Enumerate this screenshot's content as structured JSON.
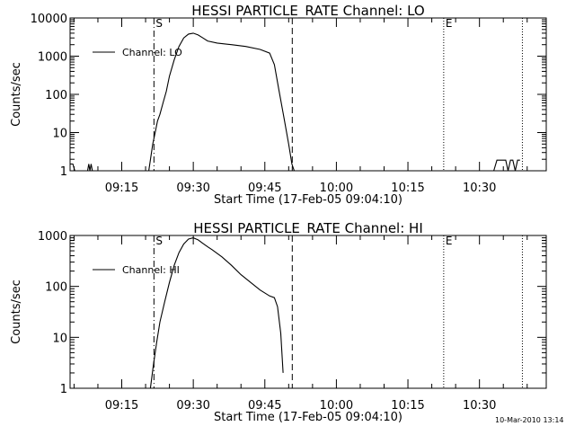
{
  "timestamp": "10-Mar-2010 13:14",
  "chart_data": [
    {
      "type": "line",
      "title": "HESSI PARTICLE_RATE Channel: LO",
      "xlabel": "Start Time (17-Feb-05 09:04:10)",
      "ylabel": "Counts/sec",
      "yscale": "log",
      "ylim": [
        1,
        10000
      ],
      "xlim": [
        "09:04:10",
        "10:44:00"
      ],
      "y_ticks": [
        "1",
        "10",
        "100",
        "1000",
        "10000"
      ],
      "x_ticks": [
        "09:15",
        "09:30",
        "09:45",
        "10:00",
        "10:15",
        "10:30"
      ],
      "legend": {
        "position": "top-left",
        "label": "Channel: LO"
      },
      "markers": [
        {
          "label": "S",
          "time": "09:21:45",
          "style": "dash-dot"
        },
        {
          "label": "",
          "time": "09:50:45",
          "style": "dashed"
        },
        {
          "label": "E",
          "time": "10:22:30",
          "style": "dotted"
        },
        {
          "label": "",
          "time": "10:39:00",
          "style": "dotted"
        }
      ],
      "series": [
        {
          "name": "Channel: LO",
          "segments": [
            {
              "x": [
                "09:04:15",
                "09:04:45",
                "09:05:10"
              ],
              "y": [
                1.5,
                1.5,
                1
              ]
            },
            {
              "x": [
                "09:07:50",
                "09:08:05",
                "09:08:20",
                "09:08:35",
                "09:08:50"
              ],
              "y": [
                1,
                1.5,
                1,
                1.5,
                1
              ]
            },
            {
              "x": [
                "09:20:40",
                "09:21:30",
                "09:22:00",
                "09:22:30",
                "09:23:00",
                "09:23:40",
                "09:24:20",
                "09:25:00",
                "09:26:00",
                "09:27:00",
                "09:28:00",
                "09:29:00",
                "09:30:00",
                "09:31:00",
                "09:32:00",
                "09:33:00",
                "09:35:00",
                "09:38:00",
                "09:41:00",
                "09:44:00",
                "09:46:00",
                "09:47:00",
                "09:48:00",
                "09:49:00",
                "09:50:00",
                "09:50:40",
                "09:51:10"
              ],
              "y": [
                1,
                5,
                10,
                20,
                30,
                60,
                120,
                300,
                800,
                1800,
                3000,
                3800,
                4000,
                3600,
                3000,
                2500,
                2200,
                2000,
                1800,
                1500,
                1200,
                600,
                120,
                25,
                5,
                1.5,
                1
              ]
            },
            {
              "x": [
                "10:33:00",
                "10:33:40",
                "10:35:30",
                "10:36:00",
                "10:36:30",
                "10:37:00",
                "10:37:30",
                "10:38:00",
                "10:38:30"
              ],
              "y": [
                1,
                1.9,
                1.9,
                1,
                1.9,
                1.9,
                1,
                1.9,
                1.9
              ]
            }
          ]
        }
      ]
    },
    {
      "type": "line",
      "title": "HESSI PARTICLE_RATE Channel: HI",
      "xlabel": "Start Time (17-Feb-05 09:04:10)",
      "ylabel": "Counts/sec",
      "yscale": "log",
      "ylim": [
        1,
        1000
      ],
      "xlim": [
        "09:04:10",
        "10:44:00"
      ],
      "y_ticks": [
        "1",
        "10",
        "100",
        "1000"
      ],
      "x_ticks": [
        "09:15",
        "09:30",
        "09:45",
        "10:00",
        "10:15",
        "10:30"
      ],
      "legend": {
        "position": "top-left",
        "label": "Channel: HI"
      },
      "markers": [
        {
          "label": "S",
          "time": "09:21:45",
          "style": "dash-dot"
        },
        {
          "label": "",
          "time": "09:50:45",
          "style": "dashed"
        },
        {
          "label": "E",
          "time": "10:22:30",
          "style": "dotted"
        },
        {
          "label": "",
          "time": "10:39:00",
          "style": "dotted"
        }
      ],
      "series": [
        {
          "name": "Channel: HI",
          "segments": [
            {
              "x": [
                "09:21:00",
                "09:21:40",
                "09:22:20",
                "09:23:00",
                "09:24:00",
                "09:25:00",
                "09:26:00",
                "09:27:00",
                "09:28:00",
                "09:29:00",
                "09:30:00",
                "09:31:00",
                "09:32:00",
                "09:33:00",
                "09:34:00",
                "09:36:00",
                "09:38:00",
                "09:40:00",
                "09:42:00",
                "09:44:00",
                "09:46:00",
                "09:47:00",
                "09:47:40",
                "09:48:20",
                "09:48:50"
              ],
              "y": [
                1,
                3,
                8,
                20,
                50,
                120,
                260,
                460,
                680,
                850,
                900,
                820,
                700,
                600,
                520,
                380,
                260,
                170,
                120,
                85,
                65,
                60,
                40,
                12,
                2
              ]
            }
          ]
        }
      ]
    }
  ]
}
